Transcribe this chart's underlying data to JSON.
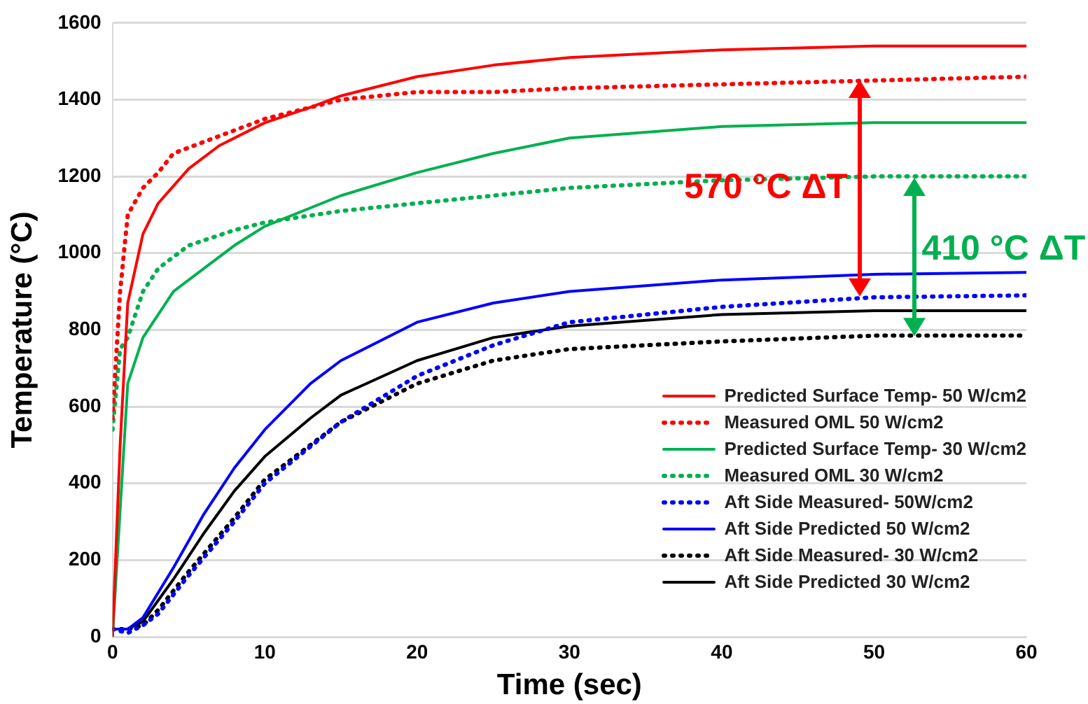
{
  "chart_data": {
    "type": "line",
    "xlabel": "Time (sec)",
    "ylabel": "Temperature (°C)",
    "xlim": [
      0,
      60
    ],
    "xticks": [
      0,
      10,
      20,
      30,
      40,
      50,
      60
    ],
    "ylim": [
      0,
      1600
    ],
    "yticks": [
      0,
      200,
      400,
      600,
      800,
      1000,
      1200,
      1400,
      1600
    ],
    "grid": "y",
    "legend": "bottom right",
    "marker": "none",
    "annotations": [
      "570 °C ΔT",
      "410 °C ΔT"
    ],
    "series": [
      {
        "name": "Predicted Surface Temp- 50 W/cm2",
        "color": "#ff0000",
        "line_style": "solid",
        "x": [
          0,
          0.5,
          1,
          2,
          3,
          5,
          7,
          10,
          13,
          15,
          20,
          25,
          30,
          40,
          50,
          60
        ],
        "values": [
          0,
          500,
          870,
          1050,
          1130,
          1220,
          1280,
          1340,
          1380,
          1410,
          1460,
          1490,
          1510,
          1530,
          1540,
          1540
        ]
      },
      {
        "name": "Measured OML 50 W/cm2",
        "color": "#ff0000",
        "line_style": "dotted",
        "x": [
          0,
          0.5,
          1,
          2,
          3,
          4,
          6,
          8,
          10,
          15,
          20,
          25,
          30,
          40,
          50,
          60
        ],
        "values": [
          570,
          900,
          1100,
          1170,
          1210,
          1260,
          1290,
          1320,
          1350,
          1400,
          1420,
          1420,
          1430,
          1440,
          1450,
          1460
        ]
      },
      {
        "name": "Predicted Surface Temp- 30 W/cm2",
        "color": "#00b050",
        "line_style": "solid",
        "x": [
          0,
          1,
          2,
          4,
          6,
          8,
          10,
          15,
          20,
          25,
          30,
          40,
          50,
          60
        ],
        "values": [
          0,
          660,
          780,
          900,
          960,
          1020,
          1070,
          1150,
          1210,
          1260,
          1300,
          1330,
          1340,
          1340
        ]
      },
      {
        "name": "Measured OML 30 W/cm2",
        "color": "#00b050",
        "line_style": "dotted",
        "x": [
          0,
          0.5,
          1,
          2,
          3,
          5,
          8,
          10,
          15,
          20,
          25,
          30,
          40,
          50,
          60
        ],
        "values": [
          540,
          750,
          780,
          900,
          960,
          1020,
          1060,
          1080,
          1110,
          1130,
          1150,
          1170,
          1190,
          1200,
          1200
        ]
      },
      {
        "name": "Aft Side Measured- 50W/cm2",
        "color": "#0000ff",
        "line_style": "dotted",
        "x": [
          0,
          1,
          2,
          3,
          5,
          8,
          10,
          15,
          20,
          25,
          30,
          40,
          50,
          60
        ],
        "values": [
          20,
          10,
          30,
          60,
          160,
          300,
          400,
          560,
          680,
          760,
          820,
          860,
          885,
          890
        ]
      },
      {
        "name": "Aft Side Predicted 50 W/cm2",
        "color": "#0000ff",
        "line_style": "solid",
        "x": [
          0,
          1,
          2,
          4,
          6,
          8,
          10,
          13,
          15,
          20,
          25,
          30,
          40,
          50,
          60
        ],
        "values": [
          20,
          20,
          50,
          180,
          320,
          440,
          540,
          660,
          720,
          820,
          870,
          900,
          930,
          945,
          950
        ]
      },
      {
        "name": "Aft Side Measured- 30 W/cm2",
        "color": "#000000",
        "line_style": "dotted",
        "x": [
          0,
          1,
          2,
          3,
          5,
          8,
          10,
          15,
          20,
          25,
          30,
          40,
          50,
          60
        ],
        "values": [
          20,
          20,
          30,
          70,
          170,
          310,
          410,
          560,
          660,
          720,
          750,
          770,
          785,
          785
        ]
      },
      {
        "name": "Aft Side Predicted 30 W/cm2",
        "color": "#000000",
        "line_style": "solid",
        "x": [
          0,
          1,
          2,
          4,
          6,
          8,
          10,
          13,
          15,
          20,
          25,
          30,
          40,
          50,
          60
        ],
        "values": [
          20,
          20,
          40,
          150,
          270,
          380,
          470,
          570,
          630,
          720,
          780,
          810,
          840,
          850,
          850
        ]
      }
    ]
  }
}
